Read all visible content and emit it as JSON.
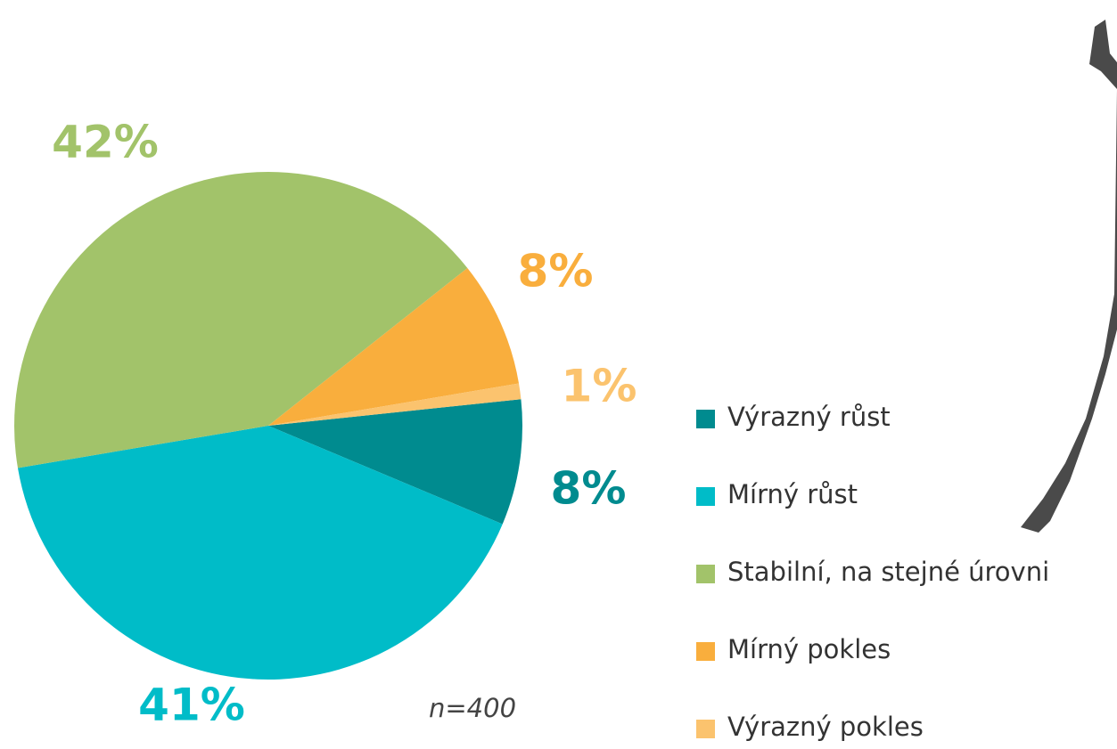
{
  "chart_data": {
    "type": "pie",
    "categories": [
      "Výrazný růst",
      "Mírný růst",
      "Stabilní, na stejné úrovni",
      "Mírný pokles",
      "Výrazný pokles"
    ],
    "values": [
      8,
      41,
      42,
      8,
      1
    ],
    "value_labels": [
      "8%",
      "41%",
      "42%",
      "8%",
      "1%"
    ],
    "colors": [
      "#008b8f",
      "#00bcc8",
      "#a2c36a",
      "#f9ae3d",
      "#fbc36e"
    ],
    "annotation": "n=400",
    "legend": "right"
  }
}
